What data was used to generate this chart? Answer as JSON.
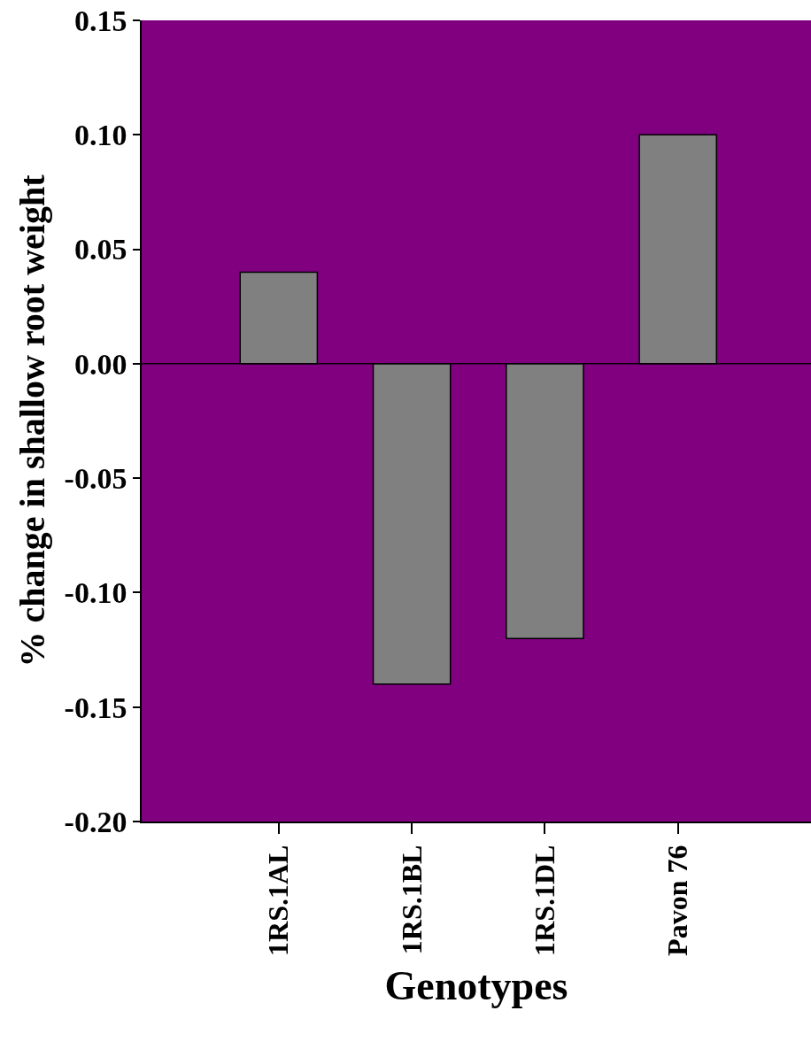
{
  "chart_data": {
    "type": "bar",
    "xlabel": "Genotypes",
    "ylabel": "% change in shallow root weight",
    "categories": [
      "1RS.1AL",
      "1RS.1BL",
      "1RS.1DL",
      "Pavon 76"
    ],
    "values": [
      0.04,
      -0.14,
      -0.12,
      0.1
    ],
    "color": "#808080",
    "ylim": [
      -0.2,
      0.15
    ],
    "yticks": [
      {
        "value": -0.2,
        "label": "-0.20"
      },
      {
        "value": -0.15,
        "label": "-0.15"
      },
      {
        "value": -0.1,
        "label": "-0.10"
      },
      {
        "value": -0.05,
        "label": "-0.05"
      },
      {
        "value": 0,
        "label": "0.00"
      },
      {
        "value": 0.05,
        "label": "0.05"
      },
      {
        "value": 0.1,
        "label": "0.10"
      },
      {
        "value": 0.15,
        "label": "0.15"
      }
    ],
    "ref_lines": [
      {
        "axis": "y",
        "value": 0,
        "color": "#000000"
      }
    ]
  }
}
